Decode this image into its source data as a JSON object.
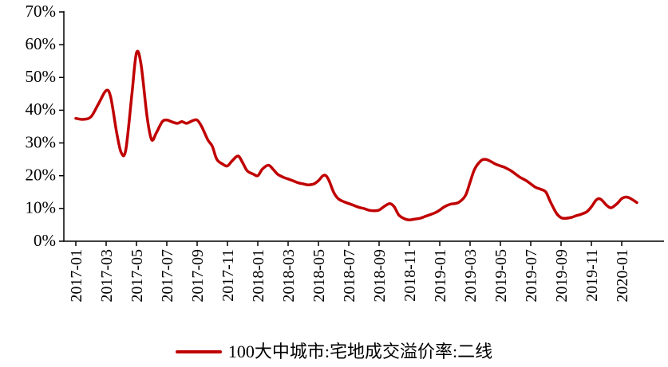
{
  "chart_data": {
    "type": "line",
    "title": "",
    "grid": false,
    "legend_position": "bottom",
    "x_axis": {
      "tick_labels": [
        "2017-01",
        "2017-03",
        "2017-05",
        "2017-07",
        "2017-09",
        "2017-11",
        "2018-01",
        "2018-03",
        "2018-05",
        "2018-07",
        "2018-09",
        "2018-11",
        "2019-01",
        "2019-03",
        "2019-05",
        "2019-07",
        "2019-09",
        "2019-11",
        "2020-01"
      ],
      "tick_months": [
        0,
        2,
        4,
        6,
        8,
        10,
        12,
        14,
        16,
        18,
        20,
        22,
        24,
        26,
        28,
        30,
        32,
        34,
        36
      ]
    },
    "y_axis": {
      "min": 0,
      "max": 70,
      "unit": "%",
      "ticks": [
        0,
        10,
        20,
        30,
        40,
        50,
        60,
        70
      ],
      "tick_labels": [
        "0%",
        "10%",
        "20%",
        "30%",
        "40%",
        "50%",
        "60%",
        "70%"
      ]
    },
    "series": [
      {
        "name": "100大中城市:宅地成交溢价率:二线",
        "color": "#C00000",
        "points": [
          [
            0,
            37.5
          ],
          [
            0.5,
            37.2
          ],
          [
            1,
            38
          ],
          [
            1.5,
            42
          ],
          [
            2,
            46
          ],
          [
            2.3,
            44
          ],
          [
            2.7,
            33
          ],
          [
            3,
            27
          ],
          [
            3.3,
            28
          ],
          [
            3.7,
            45
          ],
          [
            4,
            57.5
          ],
          [
            4.3,
            54
          ],
          [
            4.7,
            38
          ],
          [
            5,
            31
          ],
          [
            5.3,
            33
          ],
          [
            5.7,
            36.5
          ],
          [
            6,
            37
          ],
          [
            6.3,
            36.5
          ],
          [
            6.7,
            36
          ],
          [
            7,
            36.5
          ],
          [
            7.3,
            36
          ],
          [
            7.7,
            36.8
          ],
          [
            8,
            37
          ],
          [
            8.3,
            35
          ],
          [
            8.7,
            31
          ],
          [
            9,
            29
          ],
          [
            9.3,
            25
          ],
          [
            9.7,
            23.5
          ],
          [
            10,
            23
          ],
          [
            10.3,
            24.5
          ],
          [
            10.7,
            26
          ],
          [
            11,
            24
          ],
          [
            11.3,
            21.5
          ],
          [
            11.7,
            20.5
          ],
          [
            12,
            20
          ],
          [
            12.3,
            22
          ],
          [
            12.7,
            23.2
          ],
          [
            13,
            22
          ],
          [
            13.3,
            20.5
          ],
          [
            13.7,
            19.5
          ],
          [
            14,
            19
          ],
          [
            14.3,
            18.5
          ],
          [
            14.7,
            17.8
          ],
          [
            15,
            17.5
          ],
          [
            15.3,
            17.2
          ],
          [
            15.7,
            17.5
          ],
          [
            16,
            18.5
          ],
          [
            16.3,
            20
          ],
          [
            16.5,
            20
          ],
          [
            16.7,
            18.5
          ],
          [
            17,
            15
          ],
          [
            17.3,
            13
          ],
          [
            17.7,
            12
          ],
          [
            18,
            11.5
          ],
          [
            18.3,
            11
          ],
          [
            18.7,
            10.3
          ],
          [
            19,
            10
          ],
          [
            19.3,
            9.5
          ],
          [
            19.7,
            9.3
          ],
          [
            20,
            9.5
          ],
          [
            20.3,
            10.5
          ],
          [
            20.7,
            11.5
          ],
          [
            21,
            10.5
          ],
          [
            21.3,
            8
          ],
          [
            21.7,
            6.8
          ],
          [
            22,
            6.5
          ],
          [
            22.3,
            6.7
          ],
          [
            22.7,
            7
          ],
          [
            23,
            7.5
          ],
          [
            23.3,
            8
          ],
          [
            23.7,
            8.7
          ],
          [
            24,
            9.5
          ],
          [
            24.3,
            10.5
          ],
          [
            24.7,
            11.3
          ],
          [
            25,
            11.5
          ],
          [
            25.3,
            12
          ],
          [
            25.7,
            14
          ],
          [
            26,
            18
          ],
          [
            26.3,
            22
          ],
          [
            26.7,
            24.5
          ],
          [
            27,
            25
          ],
          [
            27.3,
            24.5
          ],
          [
            27.7,
            23.5
          ],
          [
            28,
            23
          ],
          [
            28.3,
            22.5
          ],
          [
            28.7,
            21.5
          ],
          [
            29,
            20.5
          ],
          [
            29.3,
            19.5
          ],
          [
            29.7,
            18.5
          ],
          [
            30,
            17.5
          ],
          [
            30.3,
            16.5
          ],
          [
            30.7,
            15.8
          ],
          [
            31,
            15
          ],
          [
            31.3,
            12
          ],
          [
            31.7,
            8.5
          ],
          [
            32,
            7.2
          ],
          [
            32.3,
            7
          ],
          [
            32.7,
            7.3
          ],
          [
            33,
            7.8
          ],
          [
            33.3,
            8.2
          ],
          [
            33.7,
            9
          ],
          [
            34,
            10.5
          ],
          [
            34.3,
            12.5
          ],
          [
            34.5,
            13
          ],
          [
            34.7,
            12.5
          ],
          [
            35,
            11
          ],
          [
            35.3,
            10.2
          ],
          [
            35.7,
            11.5
          ],
          [
            36,
            13
          ],
          [
            36.3,
            13.5
          ],
          [
            36.6,
            13
          ],
          [
            37,
            11.8
          ]
        ]
      }
    ]
  }
}
